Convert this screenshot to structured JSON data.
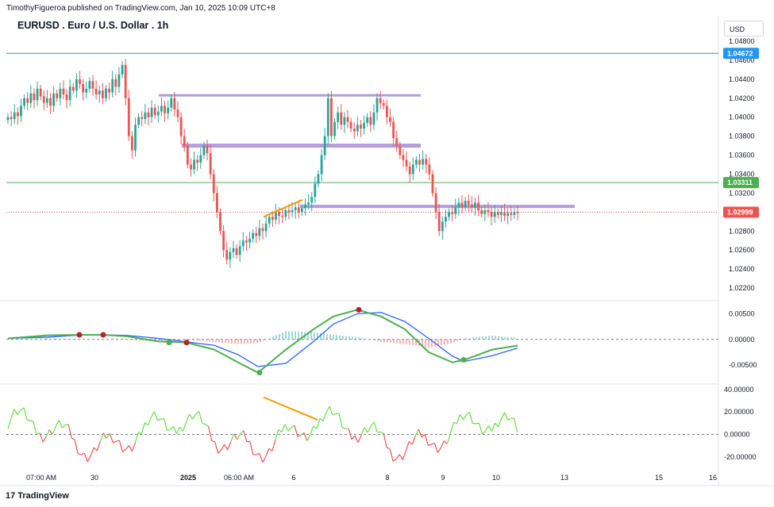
{
  "header": {
    "publisher": "TimothyFigueroa published on TradingView.com, Jan 10, 2025 10:09 UTC+8",
    "symbol": "EURUSD . Euro / U.S. Dollar . 1h",
    "currency": "USD"
  },
  "footer": {
    "logo_text": "TradingView"
  },
  "colors": {
    "up": "#26a69a",
    "down": "#ef5350",
    "blue_line": "#2196f3",
    "green_line": "#4caf50",
    "red_line": "#ef5350",
    "zone": "#b39ddb",
    "trendline": "#ff9800",
    "macd_line": "#4caf50",
    "signal_line": "#2962ff",
    "macd_down": "#b22222",
    "osc": "#66dd44"
  },
  "chart_data": [
    {
      "type": "candlestick",
      "price_ticks": [
        "1.04800",
        "1.04600",
        "1.04400",
        "1.04200",
        "1.04000",
        "1.03800",
        "1.03600",
        "1.03400",
        "1.03200",
        "1.02800",
        "1.02600",
        "1.02400",
        "1.02200"
      ],
      "price_range": [
        1.021,
        1.049
      ],
      "labels": [
        {
          "value": 1.04672,
          "text": "1.04672",
          "color": "#2196f3"
        },
        {
          "value": 1.03311,
          "text": "1.03311",
          "color": "#4caf50"
        },
        {
          "value": 1.02999,
          "text": "1.02999",
          "color": "#ef5350"
        }
      ],
      "x_ticks": [
        "07:00 AM",
        "30",
        "2025",
        "06:00 AM",
        "6",
        "8",
        "9",
        "10",
        "13",
        "15",
        "16"
      ],
      "zones": [
        {
          "from": 0.0,
          "to": 0.0,
          "value": 1.0423
        },
        {
          "value": 1.037
        },
        {
          "value": 1.0306
        }
      ],
      "closes": [
        1.04,
        1.0398,
        1.0405,
        1.0401,
        1.0412,
        1.042,
        1.0415,
        1.0425,
        1.0418,
        1.043,
        1.0422,
        1.0415,
        1.042,
        1.0412,
        1.0425,
        1.042,
        1.043,
        1.0424,
        1.0418,
        1.0432,
        1.0428,
        1.044,
        1.0435,
        1.0426,
        1.043,
        1.0438,
        1.043,
        1.0424,
        1.0428,
        1.042,
        1.043,
        1.0426,
        1.044,
        1.0432,
        1.0445,
        1.0455,
        1.042,
        1.038,
        1.0365,
        1.0392,
        1.04,
        1.0398,
        1.0405,
        1.04,
        1.041,
        1.0402,
        1.0406,
        1.0412,
        1.0404,
        1.041,
        1.042,
        1.0408,
        1.04,
        1.038,
        1.037,
        1.035,
        1.0345,
        1.0355,
        1.0352,
        1.036,
        1.037,
        1.0362,
        1.034,
        1.032,
        1.03,
        1.028,
        1.026,
        1.025,
        1.0258,
        1.0262,
        1.0255,
        1.0264,
        1.027,
        1.0268,
        1.0272,
        1.0278,
        1.0275,
        1.0283,
        1.028,
        1.0288,
        1.0295,
        1.0292,
        1.03,
        1.0296,
        1.0295,
        1.0302,
        1.03,
        1.0302,
        1.0305,
        1.03,
        1.0304,
        1.0308,
        1.031,
        1.0316,
        1.033,
        1.034,
        1.036,
        1.038,
        1.042,
        1.038,
        1.0395,
        1.0405,
        1.0392,
        1.04,
        1.0395,
        1.0388,
        1.0385,
        1.0392,
        1.0388,
        1.0394,
        1.04,
        1.0392,
        1.0405,
        1.042,
        1.0415,
        1.0412,
        1.04,
        1.0395,
        1.0378,
        1.037,
        1.036,
        1.0355,
        1.0348,
        1.034,
        1.035,
        1.0355,
        1.035,
        1.0356,
        1.035,
        1.034,
        1.032,
        1.03,
        1.028,
        1.029,
        1.0295,
        1.03,
        1.0298,
        1.0305,
        1.031,
        1.0305,
        1.0312,
        1.0308,
        1.0305,
        1.031,
        1.0302,
        1.0298,
        1.0302,
        1.03,
        1.0295,
        1.03,
        1.0297,
        1.03,
        1.0296,
        1.0299,
        1.0297,
        1.03,
        1.0299
      ]
    },
    {
      "type": "line",
      "name": "macd",
      "y_ticks": [
        "0.00500",
        "0.00000",
        "-0.00500"
      ],
      "y_range": [
        -0.0078,
        0.0068
      ]
    },
    {
      "type": "line",
      "name": "oscillator",
      "y_ticks": [
        "40.00000",
        "20.00000",
        "0.00000",
        "-20.00000"
      ],
      "y_range": [
        -23,
        42
      ]
    }
  ]
}
